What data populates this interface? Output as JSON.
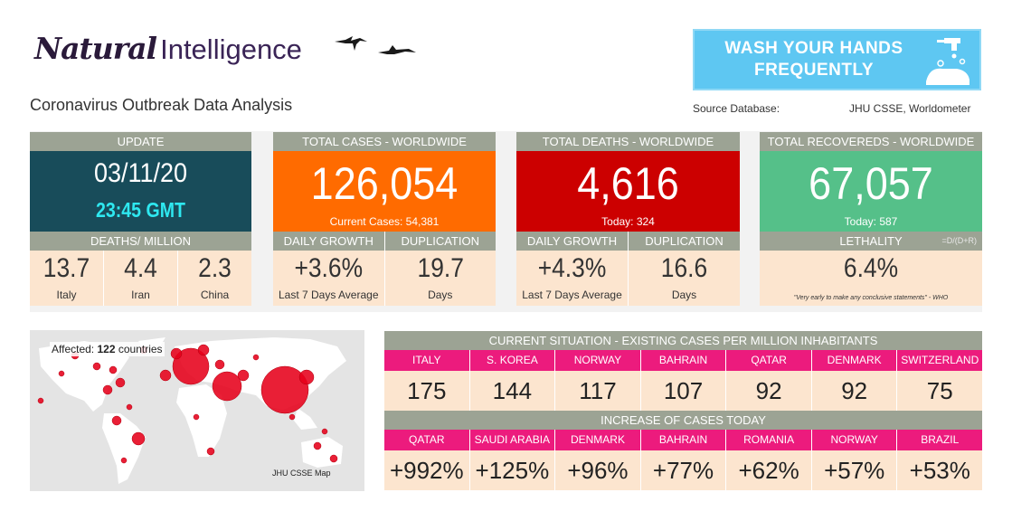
{
  "brand": {
    "natural": "Natural",
    "intelligence": "Intelligence"
  },
  "subtitle": "Coronavirus Outbreak Data Analysis",
  "wash": {
    "line1": "WASH YOUR HANDS",
    "line2": "FREQUENTLY"
  },
  "source": {
    "label": "Source Database:",
    "value": "JHU CSSE, Worldometer"
  },
  "update": {
    "header": "UPDATE",
    "date": "03/11/20",
    "time": "23:45 GMT",
    "deaths_header": "DEATHS/ MILLION",
    "countries": [
      {
        "value": "13.7",
        "name": "Italy"
      },
      {
        "value": "4.4",
        "name": "Iran"
      },
      {
        "value": "2.3",
        "name": "China"
      }
    ]
  },
  "cases": {
    "header": "TOTAL CASES - WORLDWIDE",
    "total": "126,054",
    "sub": "Current Cases: 54,381",
    "growth_header": "DAILY GROWTH",
    "growth_value": "+3.6%",
    "growth_sub": "Last 7 Days Average",
    "dup_header": "DUPLICATION",
    "dup_value": "19.7",
    "dup_sub": "Days"
  },
  "deaths": {
    "header": "TOTAL DEATHS - WORLDWIDE",
    "total": "4,616",
    "sub": "Today: 324",
    "growth_header": "DAILY GROWTH",
    "growth_value": "+4.3%",
    "growth_sub": "Last 7 Days Average",
    "dup_header": "DUPLICATION",
    "dup_value": "16.6",
    "dup_sub": "Days"
  },
  "recovered": {
    "header": "TOTAL RECOVEREDS - WORLDWIDE",
    "total": "67,057",
    "sub": "Today: 587",
    "leth_header": "LETHALITY",
    "formula": "=D/(D+R)",
    "leth_value": "6.4%",
    "note": "\"Very early to make any conclusive statements\" - WHO"
  },
  "map": {
    "affected_prefix": "Affected: ",
    "affected_count": "122",
    "affected_suffix": " countries",
    "caption": "JHU CSSE Map"
  },
  "current": {
    "header": "CURRENT SITUATION - EXISTING CASES PER MILLION INHABITANTS",
    "countries": [
      "ITALY",
      "S. KOREA",
      "NORWAY",
      "BAHRAIN",
      "QATAR",
      "DENMARK",
      "SWITZERLAND"
    ],
    "values": [
      "175",
      "144",
      "117",
      "107",
      "92",
      "92",
      "75"
    ]
  },
  "increase": {
    "header": "INCREASE OF CASES TODAY",
    "countries": [
      "QATAR",
      "SAUDI ARABIA",
      "DENMARK",
      "BAHRAIN",
      "ROMANIA",
      "NORWAY",
      "BRAZIL"
    ],
    "values": [
      "+992%",
      "+125%",
      "+96%",
      "+77%",
      "+62%",
      "+57%",
      "+53%"
    ]
  },
  "colors": {
    "update_bg": "#184c5a",
    "time_color": "#2ee8f0",
    "cases_bg": "#ff6b00",
    "deaths_bg": "#cc0000",
    "recovered_bg": "#55c089",
    "header_bg": "#9ca394",
    "pink": "#ec1b7d",
    "cell_bg": "#fce5cf",
    "wash_bg": "#5ec7f2"
  },
  "icons": [
    "bird-icon",
    "handwash-icon"
  ]
}
